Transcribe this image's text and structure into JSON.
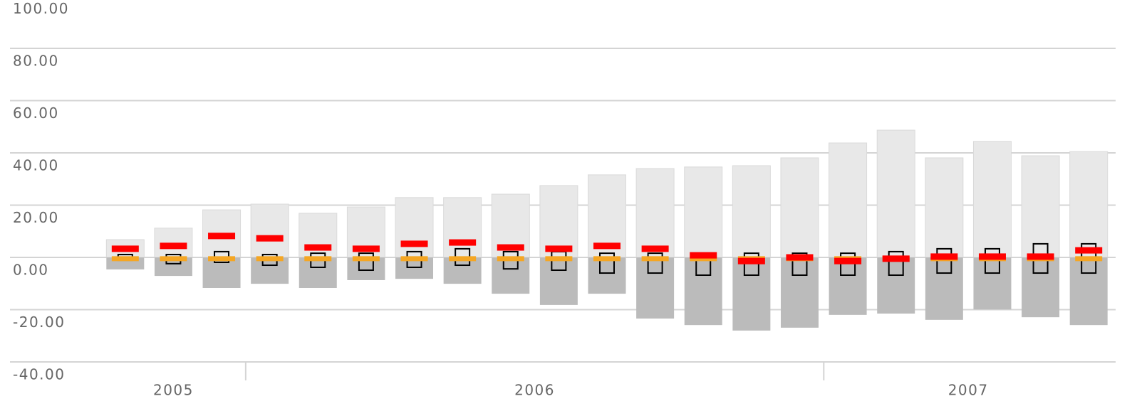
{
  "chart_data": {
    "type": "range-bar",
    "categories": [
      null,
      null,
      null,
      null,
      null,
      null,
      null,
      null,
      null,
      null,
      null,
      null,
      null,
      null,
      null,
      null,
      null,
      null,
      null,
      null,
      null
    ],
    "groups": [
      {
        "label": "2005",
        "count": 3
      },
      {
        "label": "2006",
        "count": 12
      },
      {
        "label": "2007",
        "count": 6
      }
    ],
    "ylim": [
      -40,
      100
    ],
    "yticks": [
      {
        "value": -40,
        "label": "-40.00"
      },
      {
        "value": -20,
        "label": "-20.00"
      },
      {
        "value": 0,
        "label": "0.00"
      },
      {
        "value": 20,
        "label": "20.00"
      },
      {
        "value": 40,
        "label": "40.00"
      },
      {
        "value": 60,
        "label": "60.00"
      },
      {
        "value": 80,
        "label": "80.00"
      },
      {
        "value": 100,
        "label": "100.00"
      }
    ],
    "grid": true,
    "upper": {
      "color": "#e8e8e8",
      "values": [
        6.8,
        11.2,
        18.2,
        20.4,
        16.9,
        19.3,
        22.9,
        22.9,
        24.2,
        27.5,
        31.6,
        34.0,
        34.6,
        35.1,
        38.1,
        43.8,
        48.7,
        38.1,
        44.4,
        38.9,
        40.5
      ]
    },
    "lower": {
      "color": "#bbbbbb",
      "values": [
        -4.6,
        -7.1,
        -11.7,
        -10.1,
        -11.7,
        -8.7,
        -8.2,
        -10.1,
        -13.9,
        -18.2,
        -13.9,
        -23.4,
        -25.9,
        -28.0,
        -26.9,
        -22.0,
        -21.5,
        -23.9,
        -19.9,
        -22.9,
        -25.9
      ]
    },
    "box_high": {
      "color": "#000000",
      "values": [
        1.1,
        1.1,
        2.2,
        1.1,
        1.6,
        1.6,
        2.2,
        3.3,
        2.2,
        2.2,
        1.6,
        1.6,
        1.1,
        1.6,
        1.6,
        1.6,
        2.2,
        3.3,
        3.3,
        5.2,
        5.2
      ]
    },
    "box_low": {
      "color": "#000000",
      "values": [
        -1.1,
        -2.4,
        -1.9,
        -3.0,
        -3.8,
        -4.9,
        -3.8,
        -3.0,
        -4.4,
        -4.9,
        -6.0,
        -6.0,
        -6.8,
        -6.8,
        -6.8,
        -6.8,
        -6.8,
        -6.0,
        -6.0,
        -6.0,
        -6.0
      ]
    },
    "marker_a": {
      "color": "#f5a623",
      "values": [
        -0.5,
        -0.5,
        -0.5,
        -0.5,
        -0.5,
        -0.5,
        -0.5,
        -0.5,
        -0.5,
        -0.5,
        -0.5,
        -0.5,
        -0.5,
        -0.5,
        -0.5,
        -0.5,
        -0.5,
        -0.5,
        -0.5,
        -0.5,
        -0.5
      ]
    },
    "marker_b": {
      "color": "#ff0000",
      "values": [
        3.3,
        4.4,
        8.2,
        7.3,
        3.8,
        3.3,
        5.2,
        5.7,
        3.8,
        3.3,
        4.4,
        3.3,
        0.8,
        -1.4,
        0.0,
        -1.4,
        -0.5,
        0.3,
        0.3,
        0.3,
        2.7
      ]
    }
  }
}
